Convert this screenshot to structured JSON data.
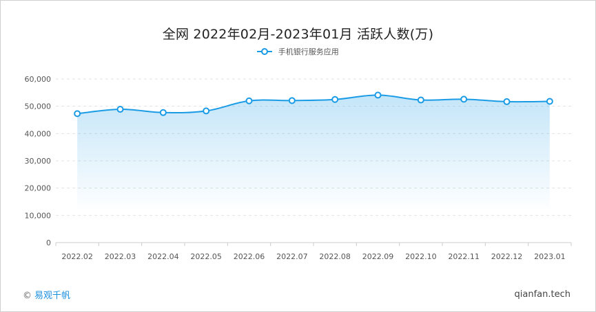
{
  "chart_data": {
    "type": "area",
    "title": "全网 2022年02月-2023年01月 活跃人数(万)",
    "legend_position": "top-center",
    "grid": true,
    "x": [
      "2022.02",
      "2022.03",
      "2022.04",
      "2022.05",
      "2022.06",
      "2022.07",
      "2022.08",
      "2022.09",
      "2022.10",
      "2022.11",
      "2022.12",
      "2023.01"
    ],
    "series": [
      {
        "name": "手机银行服务应用",
        "values": [
          47300,
          48900,
          47700,
          48300,
          52000,
          52100,
          52500,
          54100,
          52300,
          52600,
          51700,
          51800
        ],
        "color": "#1a9be6"
      }
    ],
    "ylim": [
      0,
      60000
    ],
    "yticks": [
      "0",
      "10,000",
      "20,000",
      "30,000",
      "40,000",
      "50,000",
      "60,000"
    ],
    "xlabel": "",
    "ylabel": ""
  },
  "footer": {
    "copyright_symbol": "©",
    "brand": "易观千帆",
    "site": "qianfan.tech"
  },
  "colors": {
    "line": "#1a9be6",
    "grid": "#e3e3e3",
    "axis": "#cccccc"
  }
}
